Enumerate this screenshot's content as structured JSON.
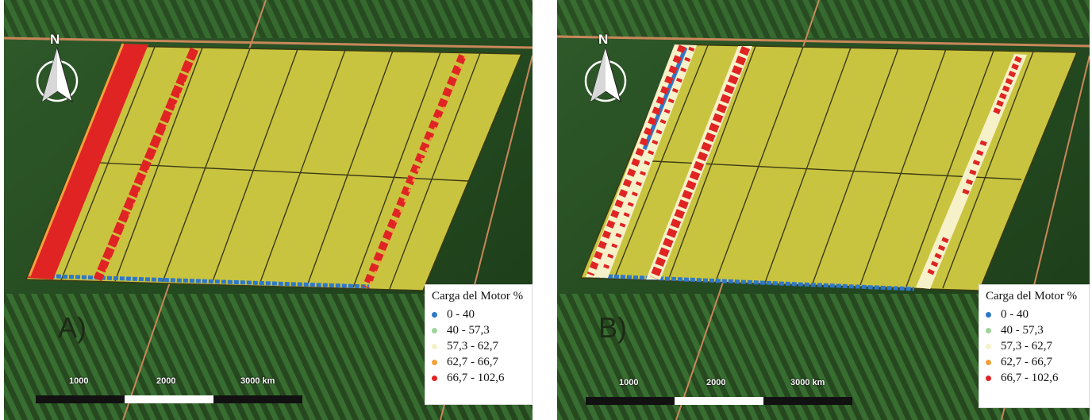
{
  "panels": [
    {
      "label": "A)",
      "north_label": "N",
      "legend": {
        "title": "Carga del Motor %",
        "items": [
          {
            "label": "0 - 40",
            "color": "#2f78c8"
          },
          {
            "label": "40 - 57,3",
            "color": "#9fd39a"
          },
          {
            "label": "57,3 - 62,7",
            "color": "#f6f1c8"
          },
          {
            "label": "62,7 - 66,7",
            "color": "#f2a03c"
          },
          {
            "label": "66,7 - 102,6",
            "color": "#e02424"
          }
        ]
      },
      "scale": {
        "labels": [
          "1000",
          "2000",
          "3000 km"
        ]
      }
    },
    {
      "label": "B)",
      "north_label": "N",
      "legend": {
        "title": "Carga del Motor %",
        "items": [
          {
            "label": "0 - 40",
            "color": "#2f78c8"
          },
          {
            "label": "40 - 57,3",
            "color": "#9fd39a"
          },
          {
            "label": "57,3 - 62,7",
            "color": "#f6f1c8"
          },
          {
            "label": "62,7 - 66,7",
            "color": "#f2a03c"
          },
          {
            "label": "66,7 - 102,6",
            "color": "#e02424"
          }
        ]
      },
      "scale": {
        "labels": [
          "1000",
          "2000",
          "3000 km"
        ]
      }
    }
  ],
  "colors": {
    "field": "#c9c440",
    "field_line": "#3b3a14",
    "vegetation_dark": "#1f3d1c",
    "vegetation_mid": "#3f7a35",
    "road": "#c9875a"
  }
}
